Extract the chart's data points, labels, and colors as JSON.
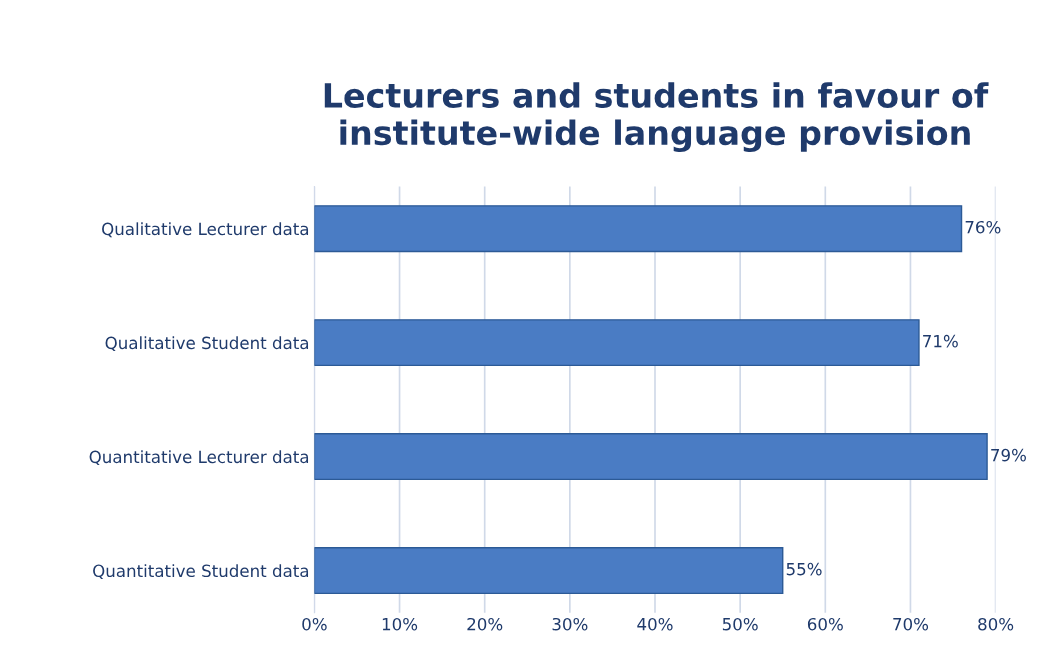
{
  "chart_data": {
    "type": "bar",
    "orientation": "horizontal",
    "title": "Lecturers and students in favour of\ninstitute-wide language provision",
    "categories": [
      "Qualitative Lecturer data",
      "Qualitative Student data",
      "Quantitative Lecturer data",
      "Quantitative Student data"
    ],
    "values": [
      76,
      71,
      79,
      55
    ],
    "value_labels": [
      "76%",
      "71%",
      "79%",
      "55%"
    ],
    "color": "#4a7cc4",
    "xlim": [
      0,
      80
    ],
    "xticks": [
      {
        "value": 0,
        "label": "0%"
      },
      {
        "value": 10,
        "label": "10%"
      },
      {
        "value": 20,
        "label": "20%"
      },
      {
        "value": 30,
        "label": "30%"
      },
      {
        "value": 40,
        "label": "40%"
      },
      {
        "value": 50,
        "label": "50%"
      },
      {
        "value": 60,
        "label": "60%"
      },
      {
        "value": 70,
        "label": "70%"
      },
      {
        "value": 80,
        "label": "80%"
      }
    ],
    "grid": "x",
    "legend": false
  }
}
